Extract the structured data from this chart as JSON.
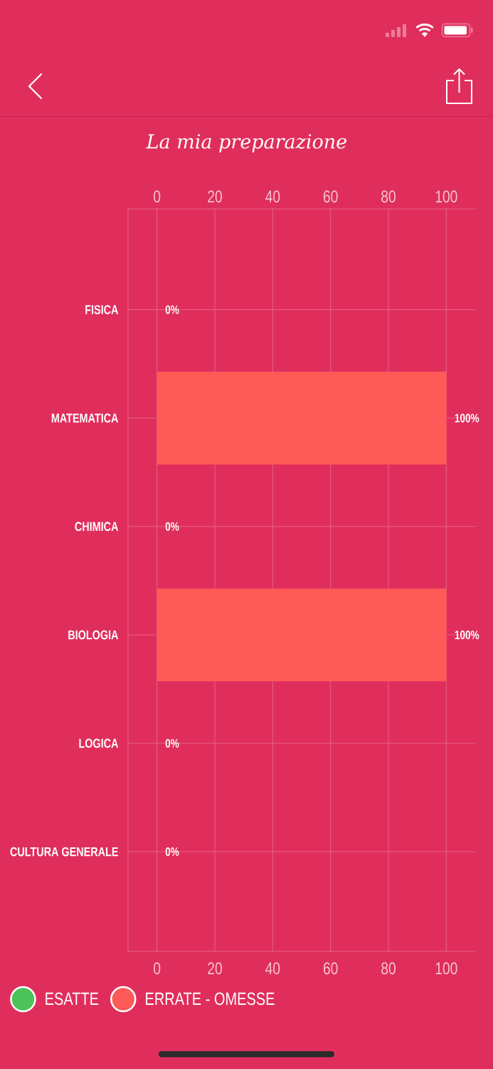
{
  "chart_data": {
    "type": "bar",
    "orientation": "horizontal",
    "stacked": true,
    "title": "La mia preparazione",
    "categories": [
      "FISICA",
      "MATEMATICA",
      "CHIMICA",
      "BIOLOGIA",
      "LOGICA",
      "CULTURA GENERALE"
    ],
    "series": [
      {
        "name": "ESATTE",
        "color": "#4cc25a",
        "values": [
          0,
          0,
          0,
          0,
          0,
          0
        ]
      },
      {
        "name": "ERRATE - OMESSE",
        "color": "#fe5a58",
        "values": [
          0,
          100,
          0,
          100,
          0,
          0
        ]
      }
    ],
    "xlim": [
      -10,
      110
    ],
    "xticks": [
      0,
      20,
      40,
      60,
      80,
      100
    ],
    "x2lim": [
      -10,
      110
    ],
    "x2ticks": [
      0,
      20,
      40,
      60,
      80,
      100
    ],
    "totals": [
      "0%",
      "100%",
      "0%",
      "100%",
      "0%",
      "0%"
    ],
    "grid": true,
    "legend": "bottom left"
  }
}
